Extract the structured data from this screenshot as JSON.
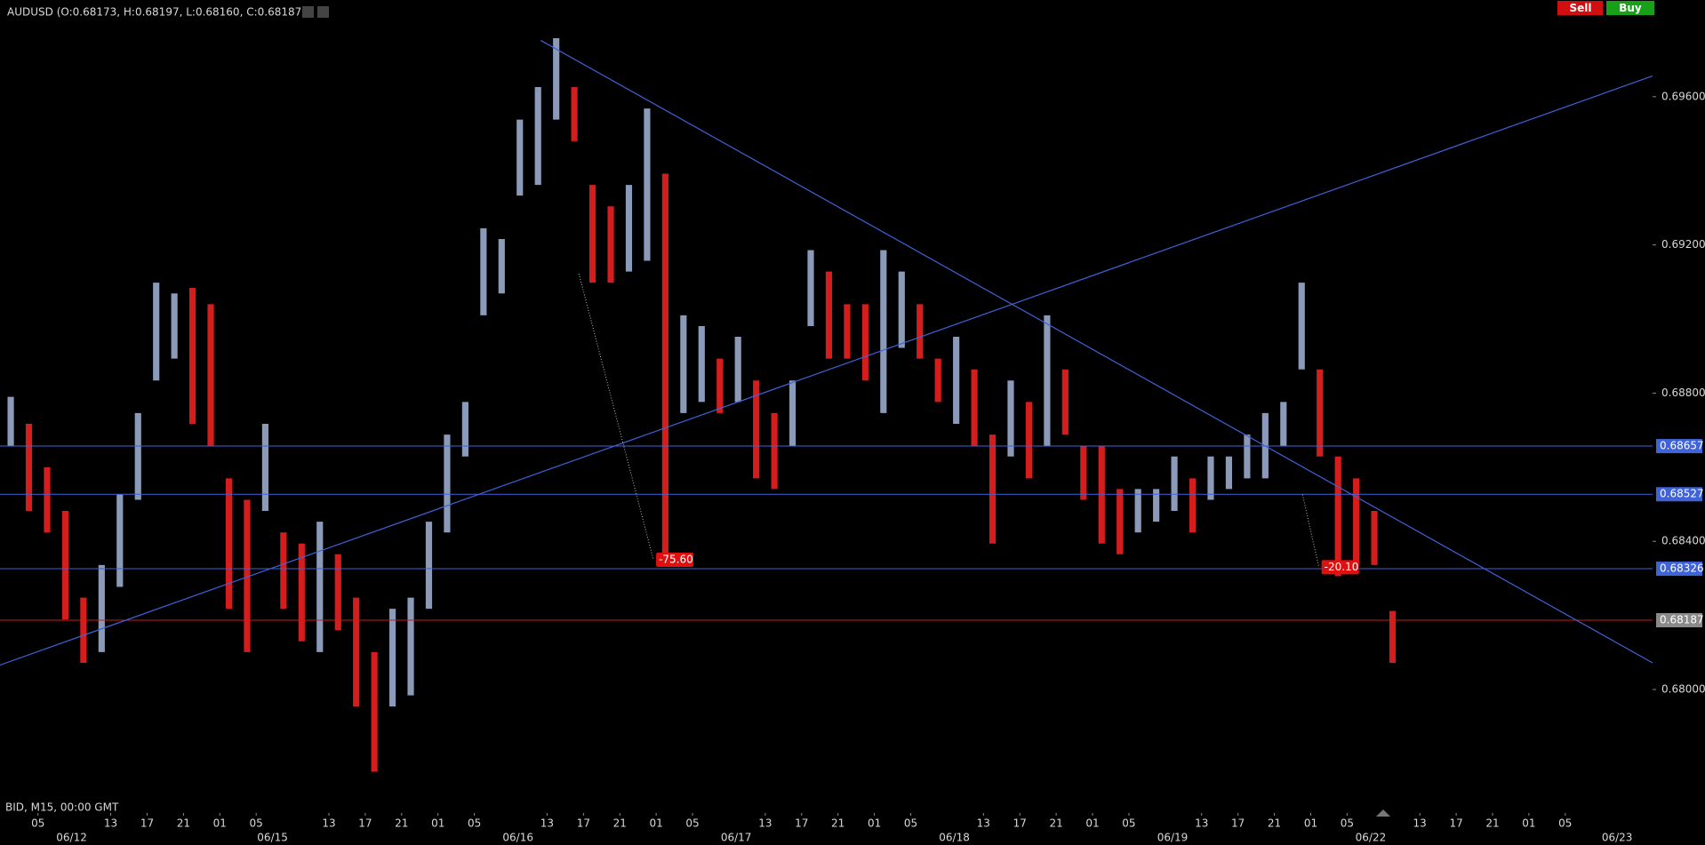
{
  "chart_data": {
    "type": "range-bar",
    "title": "AUDUSD (O:0.68173, H:0.68197, L:0.68160, C:0.68187)",
    "subtitle": "BID, M15, 00:00 GMT",
    "x": [
      2,
      4,
      6,
      8,
      10,
      12,
      14,
      16,
      18,
      20,
      22,
      24,
      26,
      28,
      30,
      32,
      34,
      36,
      38,
      40,
      42,
      44,
      46,
      48,
      50,
      52,
      54,
      56,
      58,
      60,
      62,
      64,
      66,
      68,
      70,
      72,
      74,
      76,
      78,
      80,
      82,
      84,
      86,
      88,
      90,
      92,
      94,
      96,
      98,
      100,
      102,
      104,
      106,
      108,
      110,
      112,
      114,
      116,
      118,
      120,
      122,
      124,
      126,
      128,
      130,
      132,
      134,
      136,
      138,
      140,
      142,
      144,
      146,
      148,
      150,
      152,
      154
    ],
    "high": [
      0.6879,
      0.68717,
      0.686,
      0.68482,
      0.68248,
      0.68336,
      0.68526,
      0.68746,
      0.69098,
      0.69069,
      0.69084,
      0.6904,
      0.6857,
      0.68512,
      0.68717,
      0.68424,
      0.68394,
      0.68453,
      0.68365,
      0.68248,
      0.68101,
      0.68218,
      0.68248,
      0.68453,
      0.68688,
      0.68776,
      0.69245,
      0.69216,
      0.69538,
      0.69626,
      0.69758,
      0.69626,
      0.69362,
      0.69304,
      0.69362,
      0.69568,
      0.69392,
      0.6901,
      0.68981,
      0.68893,
      0.68952,
      0.68834,
      0.68746,
      0.68834,
      0.69186,
      0.69128,
      0.6904,
      0.6904,
      0.69186,
      0.69128,
      0.6904,
      0.68893,
      0.68952,
      0.68864,
      0.68688,
      0.68834,
      0.68776,
      0.6901,
      0.68864,
      0.68658,
      0.68658,
      0.68541,
      0.68541,
      0.68541,
      0.68629,
      0.6857,
      0.68629,
      0.68629,
      0.68688,
      0.68746,
      0.68776,
      0.69098,
      0.68864,
      0.68629,
      0.6857,
      0.68482,
      0.68212
    ],
    "low": [
      0.68658,
      0.68482,
      0.68424,
      0.68189,
      0.68072,
      0.68101,
      0.68277,
      0.68512,
      0.68834,
      0.68893,
      0.68717,
      0.68658,
      0.68218,
      0.68101,
      0.68482,
      0.68218,
      0.6813,
      0.68101,
      0.6816,
      0.67954,
      0.67778,
      0.67954,
      0.67984,
      0.68218,
      0.68424,
      0.68629,
      0.6901,
      0.69069,
      0.69333,
      0.69362,
      0.69538,
      0.6948,
      0.69098,
      0.69098,
      0.69128,
      0.69157,
      0.68336,
      0.68746,
      0.68776,
      0.68746,
      0.68776,
      0.6857,
      0.68541,
      0.68658,
      0.68981,
      0.68893,
      0.68893,
      0.68834,
      0.68746,
      0.68922,
      0.68893,
      0.68776,
      0.68717,
      0.68658,
      0.68394,
      0.68629,
      0.6857,
      0.68658,
      0.68688,
      0.68512,
      0.68394,
      0.68365,
      0.68424,
      0.68453,
      0.68482,
      0.68424,
      0.68512,
      0.68541,
      0.6857,
      0.6857,
      0.68658,
      0.68864,
      0.68629,
      0.68306,
      0.68336,
      0.68336,
      0.68072
    ],
    "up_color": "#8a9ab8",
    "down_color": "#d41e1e",
    "xlim": [
      0.82,
      182.6
    ],
    "ylim": [
      0.67705,
      0.69861
    ],
    "yticks": [
      {
        "value": 0.696,
        "label": "0.69600"
      },
      {
        "value": 0.692,
        "label": "0.69200"
      },
      {
        "value": 0.688,
        "label": "0.68800"
      },
      {
        "value": 0.684,
        "label": "0.68400"
      },
      {
        "value": 0.68,
        "label": "0.68000"
      }
    ],
    "xticks": [
      {
        "value": 5,
        "label": "05"
      },
      {
        "value": 13,
        "label": "13"
      },
      {
        "value": 17,
        "label": "17"
      },
      {
        "value": 21,
        "label": "21"
      },
      {
        "value": 25,
        "label": "01"
      },
      {
        "value": 29,
        "label": "05"
      },
      {
        "value": 37,
        "label": "13"
      },
      {
        "value": 41,
        "label": "17"
      },
      {
        "value": 45,
        "label": "21"
      },
      {
        "value": 49,
        "label": "01"
      },
      {
        "value": 53,
        "label": "05"
      },
      {
        "value": 61,
        "label": "13"
      },
      {
        "value": 65,
        "label": "17"
      },
      {
        "value": 69,
        "label": "21"
      },
      {
        "value": 73,
        "label": "01"
      },
      {
        "value": 77,
        "label": "05"
      },
      {
        "value": 85,
        "label": "13"
      },
      {
        "value": 89,
        "label": "17"
      },
      {
        "value": 93,
        "label": "21"
      },
      {
        "value": 97,
        "label": "01"
      },
      {
        "value": 101,
        "label": "05"
      },
      {
        "value": 109,
        "label": "13"
      },
      {
        "value": 113,
        "label": "17"
      },
      {
        "value": 117,
        "label": "21"
      },
      {
        "value": 121,
        "label": "01"
      },
      {
        "value": 125,
        "label": "05"
      },
      {
        "value": 133,
        "label": "13"
      },
      {
        "value": 137,
        "label": "17"
      },
      {
        "value": 141,
        "label": "21"
      },
      {
        "value": 145,
        "label": "01"
      },
      {
        "value": 149,
        "label": "05"
      },
      {
        "value": 157,
        "label": "13"
      },
      {
        "value": 161,
        "label": "17"
      },
      {
        "value": 165,
        "label": "21"
      },
      {
        "value": 169,
        "label": "01"
      },
      {
        "value": 173,
        "label": "05"
      }
    ],
    "date_ticks": [
      {
        "value": 8.7,
        "label": "06/12"
      },
      {
        "value": 30.8,
        "label": "06/15"
      },
      {
        "value": 57.8,
        "label": "06/16"
      },
      {
        "value": 81.8,
        "label": "06/17"
      },
      {
        "value": 105.8,
        "label": "06/18"
      },
      {
        "value": 129.8,
        "label": "06/19"
      },
      {
        "value": 151.6,
        "label": "06/22"
      },
      {
        "value": 178.7,
        "label": "06/23"
      }
    ],
    "levels": [
      {
        "value": 0.68657,
        "color": "#3f63d8",
        "label_color": "#3f63d8"
      },
      {
        "value": 0.68527,
        "color": "#3f63d8",
        "label_color": "#3f63d8"
      },
      {
        "value": 0.68326,
        "color": "#3f63d8",
        "label_color": "#3f63d8"
      },
      {
        "value": 0.68187,
        "color": "#c81e1e",
        "label_color": "#8a8a8a"
      }
    ],
    "trend_lines": [
      {
        "x": [
          60.3,
          182.6
        ],
        "y": [
          0.69752,
          0.68072
        ],
        "color": "#3f63d8"
      },
      {
        "x": [
          0.82,
          182.6
        ],
        "y": [
          0.68066,
          0.69656
        ],
        "color": "#3f63d8"
      }
    ],
    "annotations": [
      {
        "x": [
          64.5,
          72.7
        ],
        "y": [
          0.69122,
          0.6835
        ],
        "label": "-75.60"
      },
      {
        "x": [
          144.1,
          145.9
        ],
        "y": [
          0.68526,
          0.6833
        ],
        "label": "-20.10"
      }
    ]
  },
  "toolbar": {
    "sell": "Sell",
    "buy": "Buy"
  }
}
